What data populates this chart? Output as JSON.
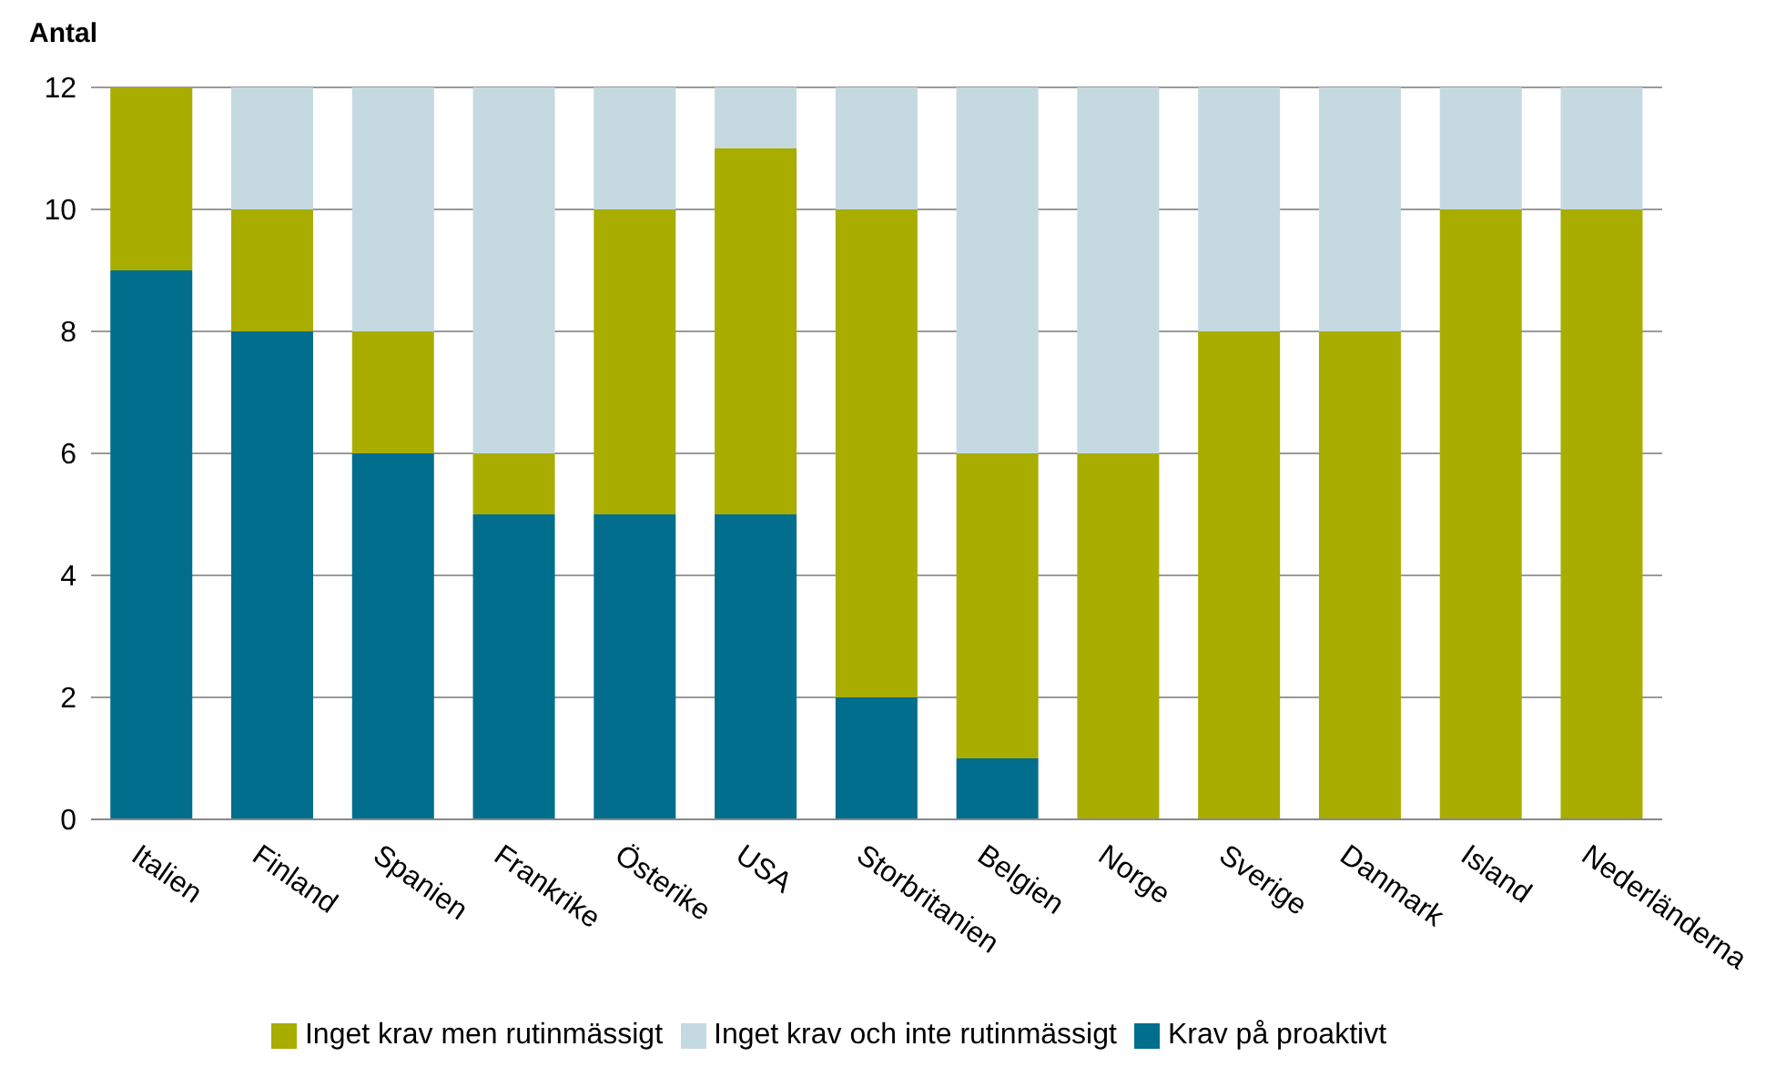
{
  "chart_data": {
    "type": "bar",
    "ylabel": "Antal",
    "stacked": true,
    "grid": "y",
    "legend": "bottom",
    "categories": [
      "Italien",
      "Finland",
      "Spanien",
      "Frankrike",
      "Österike",
      "USA",
      "Storbritanien",
      "Belgien",
      "Norge",
      "Sverige",
      "Danmark",
      "Island",
      "Nederländerna"
    ],
    "ylim": [
      0,
      12
    ],
    "yticks": [
      0,
      2,
      4,
      6,
      8,
      10,
      12
    ],
    "series": [
      {
        "name": "Krav på proaktivt",
        "color": "#006e8c",
        "values": [
          9,
          8,
          6,
          5,
          5,
          5,
          2,
          1,
          0,
          0,
          0,
          0,
          0
        ]
      },
      {
        "name": "Inget krav men rutinmässigt",
        "color": "#a8ad00",
        "values": [
          3,
          2,
          2,
          1,
          5,
          6,
          8,
          5,
          6,
          8,
          8,
          10,
          10
        ]
      },
      {
        "name": "Inget krav och inte rutinmässigt",
        "color": "#c5d9e0",
        "values": [
          0,
          2,
          4,
          6,
          2,
          1,
          2,
          6,
          6,
          4,
          4,
          2,
          2
        ]
      }
    ]
  }
}
